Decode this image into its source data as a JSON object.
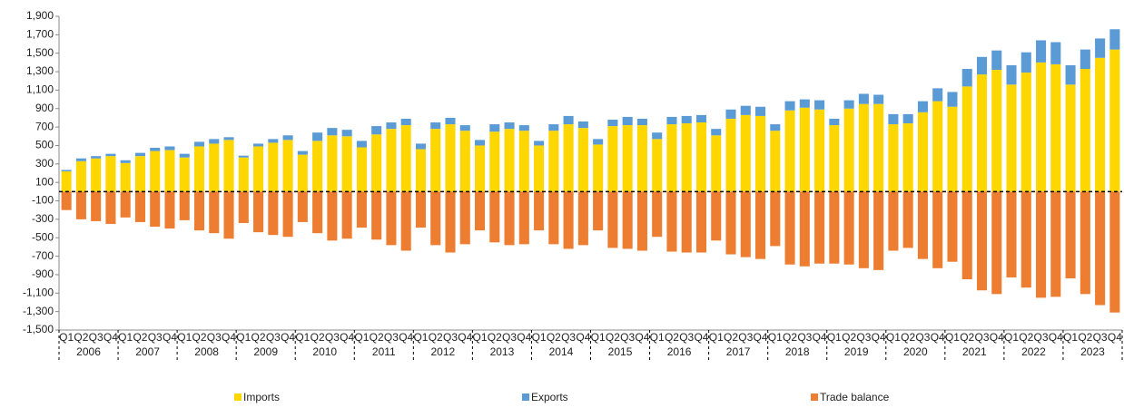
{
  "chart_data": {
    "type": "stacked_bar",
    "categories": [
      "Q1",
      "Q2",
      "Q3",
      "Q4",
      "Q1",
      "Q2",
      "Q3",
      "Q4",
      "Q1",
      "Q2",
      "Q3",
      "Q4",
      "Q1",
      "Q2",
      "Q3",
      "Q4",
      "Q1",
      "Q2",
      "Q3",
      "Q4",
      "Q1",
      "Q2",
      "Q3",
      "Q4",
      "Q1",
      "Q2",
      "Q3",
      "Q4",
      "Q1",
      "Q2",
      "Q3",
      "Q4",
      "Q1",
      "Q2",
      "Q3",
      "Q4",
      "Q1",
      "Q2",
      "Q3",
      "Q4",
      "Q1",
      "Q2",
      "Q3",
      "Q4",
      "Q1",
      "Q2",
      "Q3",
      "Q4",
      "Q1",
      "Q2",
      "Q3",
      "Q4",
      "Q1",
      "Q2",
      "Q3",
      "Q4",
      "Q1",
      "Q2",
      "Q3",
      "Q4",
      "Q1",
      "Q2",
      "Q3",
      "Q4",
      "Q1",
      "Q2",
      "Q3",
      "Q4",
      "Q1",
      "Q2",
      "Q3",
      "Q4"
    ],
    "years": [
      "2006",
      "2007",
      "2008",
      "2009",
      "2010",
      "2011",
      "2012",
      "2013",
      "2014",
      "2015",
      "2016",
      "2017",
      "2018",
      "2019",
      "2020",
      "2021",
      "2022",
      "2023"
    ],
    "series": [
      {
        "name": "Imports",
        "color": "#ffd700",
        "values": [
          220,
          330,
          360,
          385,
          310,
          385,
          440,
          450,
          370,
          490,
          520,
          560,
          370,
          490,
          530,
          560,
          400,
          550,
          610,
          600,
          480,
          620,
          680,
          720,
          460,
          680,
          730,
          660,
          500,
          650,
          680,
          660,
          500,
          660,
          730,
          690,
          510,
          710,
          720,
          720,
          570,
          730,
          740,
          750,
          610,
          790,
          830,
          820,
          660,
          880,
          910,
          890,
          720,
          900,
          950,
          950,
          730,
          740,
          860,
          980,
          920,
          1140,
          1270,
          1320,
          1160,
          1290,
          1400,
          1380,
          1160,
          1330,
          1450,
          1540
        ]
      },
      {
        "name": "Exports",
        "color": "#5b9bd5",
        "values": [
          15,
          30,
          25,
          25,
          30,
          35,
          35,
          40,
          40,
          50,
          50,
          30,
          20,
          30,
          40,
          50,
          40,
          90,
          80,
          70,
          70,
          90,
          70,
          70,
          60,
          70,
          70,
          60,
          60,
          80,
          70,
          60,
          50,
          70,
          90,
          70,
          60,
          70,
          90,
          70,
          70,
          80,
          80,
          80,
          70,
          100,
          100,
          100,
          70,
          100,
          90,
          100,
          70,
          90,
          110,
          100,
          110,
          100,
          120,
          140,
          160,
          190,
          190,
          210,
          210,
          220,
          240,
          240,
          210,
          210,
          210,
          220
        ]
      },
      {
        "name": "Trade balance",
        "color": "#ed7d31",
        "values": [
          -200,
          -300,
          -320,
          -350,
          -280,
          -330,
          -380,
          -400,
          -310,
          -420,
          -450,
          -510,
          -340,
          -440,
          -470,
          -490,
          -330,
          -450,
          -530,
          -510,
          -390,
          -520,
          -580,
          -640,
          -390,
          -580,
          -660,
          -570,
          -420,
          -550,
          -580,
          -570,
          -420,
          -570,
          -620,
          -580,
          -420,
          -610,
          -620,
          -640,
          -490,
          -650,
          -660,
          -660,
          -530,
          -680,
          -710,
          -730,
          -590,
          -790,
          -810,
          -780,
          -780,
          -790,
          -830,
          -850,
          -640,
          -610,
          -730,
          -830,
          -760,
          -950,
          -1070,
          -1110,
          -930,
          -1040,
          -1150,
          -1140,
          -940,
          -1110,
          -1230,
          -1310
        ]
      }
    ],
    "ylim": [
      -1500,
      1900
    ],
    "yticks": [
      {
        "value": 1900,
        "label": "1,900"
      },
      {
        "value": 1700,
        "label": "1,700"
      },
      {
        "value": 1500,
        "label": "1,500"
      },
      {
        "value": 1300,
        "label": "1,300"
      },
      {
        "value": 1100,
        "label": "1,100"
      },
      900,
      700,
      500,
      300,
      100,
      -100,
      -300,
      -500,
      -700,
      -900,
      {
        "value": -1100,
        "label": "-1,100"
      },
      {
        "value": -1300,
        "label": "-1,300"
      },
      {
        "value": -1500,
        "label": "-1,500"
      }
    ],
    "grid": false
  }
}
